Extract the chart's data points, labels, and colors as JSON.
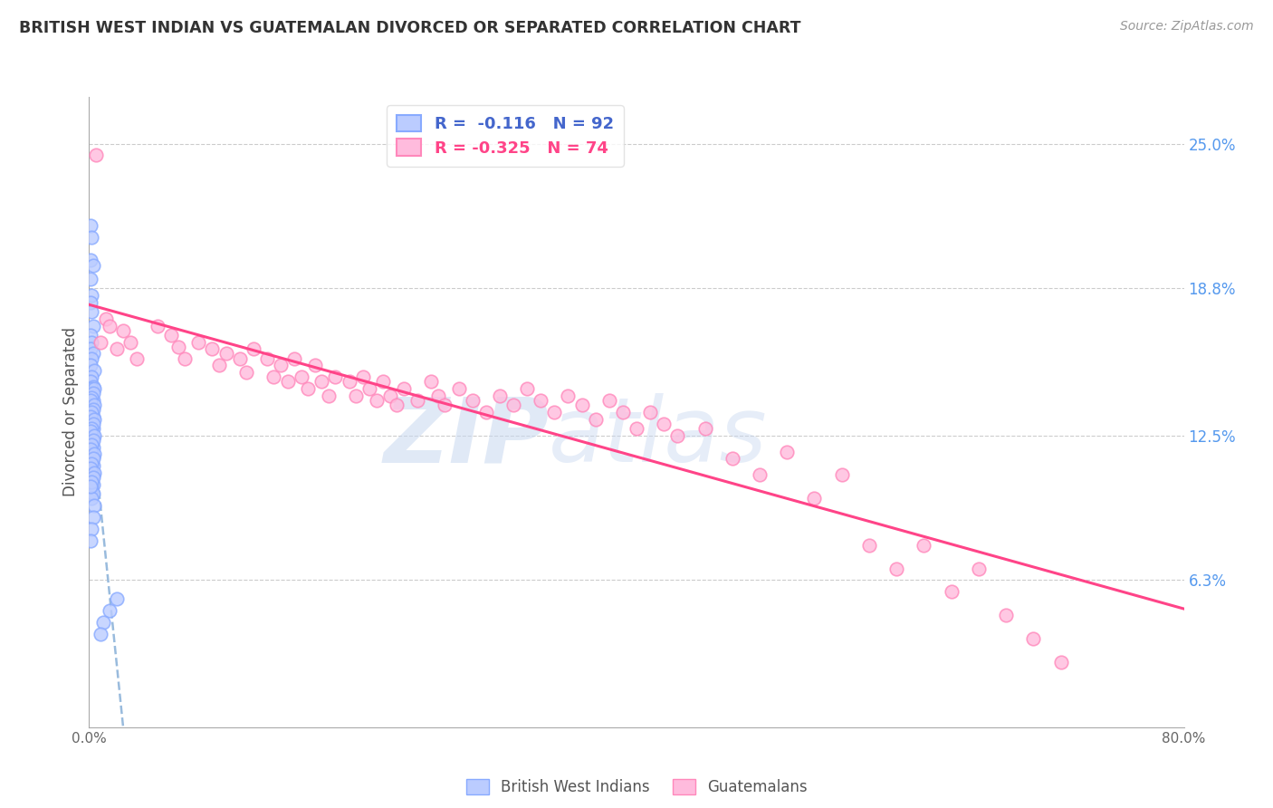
{
  "title": "BRITISH WEST INDIAN VS GUATEMALAN DIVORCED OR SEPARATED CORRELATION CHART",
  "source": "Source: ZipAtlas.com",
  "ylabel": "Divorced or Separated",
  "watermark_zip": "ZIP",
  "watermark_atlas": "atlas",
  "xlim": [
    0.0,
    0.8
  ],
  "ylim": [
    0.0,
    0.27
  ],
  "plot_ylim": [
    0.0,
    0.27
  ],
  "ytick_values": [
    0.063,
    0.125,
    0.188,
    0.25
  ],
  "ytick_labels": [
    "6.3%",
    "12.5%",
    "18.8%",
    "25.0%"
  ],
  "grid_color": "#cccccc",
  "bg_color": "#ffffff",
  "blue_color": "#88aaff",
  "pink_color": "#ff88bb",
  "blue_fill": "#bbccff",
  "pink_fill": "#ffbbdd",
  "blue_line_color": "#4466cc",
  "pink_line_color": "#ff4488",
  "dashed_line_color": "#99bbdd",
  "title_color": "#333333",
  "right_label_color": "#5599ee",
  "source_color": "#999999",
  "bwi_x": [
    0.001,
    0.002,
    0.001,
    0.003,
    0.001,
    0.002,
    0.001,
    0.002,
    0.003,
    0.001,
    0.002,
    0.001,
    0.003,
    0.002,
    0.001,
    0.004,
    0.002,
    0.001,
    0.003,
    0.002,
    0.001,
    0.002,
    0.003,
    0.001,
    0.002,
    0.001,
    0.003,
    0.002,
    0.001,
    0.002,
    0.003,
    0.001,
    0.002,
    0.001,
    0.003,
    0.002,
    0.001,
    0.002,
    0.003,
    0.001,
    0.002,
    0.001,
    0.003,
    0.002,
    0.001,
    0.002,
    0.003,
    0.001,
    0.002,
    0.001,
    0.003,
    0.002,
    0.001,
    0.002,
    0.003,
    0.001,
    0.002,
    0.001,
    0.003,
    0.002,
    0.004,
    0.003,
    0.002,
    0.001,
    0.004,
    0.003,
    0.002,
    0.001,
    0.004,
    0.003,
    0.002,
    0.001,
    0.004,
    0.003,
    0.002,
    0.001,
    0.004,
    0.003,
    0.002,
    0.001,
    0.004,
    0.003,
    0.002,
    0.001,
    0.004,
    0.003,
    0.002,
    0.001,
    0.02,
    0.015,
    0.01,
    0.008
  ],
  "bwi_y": [
    0.215,
    0.21,
    0.2,
    0.198,
    0.192,
    0.185,
    0.182,
    0.178,
    0.172,
    0.168,
    0.165,
    0.162,
    0.16,
    0.158,
    0.155,
    0.153,
    0.15,
    0.148,
    0.146,
    0.145,
    0.143,
    0.142,
    0.14,
    0.138,
    0.136,
    0.134,
    0.133,
    0.132,
    0.13,
    0.129,
    0.128,
    0.127,
    0.126,
    0.125,
    0.124,
    0.123,
    0.122,
    0.121,
    0.12,
    0.119,
    0.118,
    0.117,
    0.116,
    0.115,
    0.114,
    0.113,
    0.112,
    0.111,
    0.11,
    0.109,
    0.108,
    0.107,
    0.106,
    0.105,
    0.104,
    0.103,
    0.102,
    0.101,
    0.1,
    0.098,
    0.145,
    0.143,
    0.141,
    0.14,
    0.138,
    0.136,
    0.135,
    0.133,
    0.132,
    0.13,
    0.128,
    0.127,
    0.125,
    0.123,
    0.121,
    0.119,
    0.117,
    0.115,
    0.113,
    0.111,
    0.109,
    0.107,
    0.105,
    0.103,
    0.095,
    0.09,
    0.085,
    0.08,
    0.055,
    0.05,
    0.045,
    0.04
  ],
  "guat_x": [
    0.005,
    0.008,
    0.012,
    0.015,
    0.02,
    0.025,
    0.03,
    0.035,
    0.05,
    0.06,
    0.065,
    0.07,
    0.08,
    0.09,
    0.095,
    0.1,
    0.11,
    0.115,
    0.12,
    0.13,
    0.135,
    0.14,
    0.145,
    0.15,
    0.155,
    0.16,
    0.165,
    0.17,
    0.175,
    0.18,
    0.19,
    0.195,
    0.2,
    0.205,
    0.21,
    0.215,
    0.22,
    0.225,
    0.23,
    0.24,
    0.25,
    0.255,
    0.26,
    0.27,
    0.28,
    0.29,
    0.3,
    0.31,
    0.32,
    0.33,
    0.34,
    0.35,
    0.36,
    0.37,
    0.38,
    0.39,
    0.4,
    0.41,
    0.42,
    0.43,
    0.45,
    0.47,
    0.49,
    0.51,
    0.53,
    0.55,
    0.57,
    0.59,
    0.61,
    0.63,
    0.65,
    0.67,
    0.69,
    0.71
  ],
  "guat_y": [
    0.245,
    0.165,
    0.175,
    0.172,
    0.162,
    0.17,
    0.165,
    0.158,
    0.172,
    0.168,
    0.163,
    0.158,
    0.165,
    0.162,
    0.155,
    0.16,
    0.158,
    0.152,
    0.162,
    0.158,
    0.15,
    0.155,
    0.148,
    0.158,
    0.15,
    0.145,
    0.155,
    0.148,
    0.142,
    0.15,
    0.148,
    0.142,
    0.15,
    0.145,
    0.14,
    0.148,
    0.142,
    0.138,
    0.145,
    0.14,
    0.148,
    0.142,
    0.138,
    0.145,
    0.14,
    0.135,
    0.142,
    0.138,
    0.145,
    0.14,
    0.135,
    0.142,
    0.138,
    0.132,
    0.14,
    0.135,
    0.128,
    0.135,
    0.13,
    0.125,
    0.128,
    0.115,
    0.108,
    0.118,
    0.098,
    0.108,
    0.078,
    0.068,
    0.078,
    0.058,
    0.068,
    0.048,
    0.038,
    0.028
  ]
}
